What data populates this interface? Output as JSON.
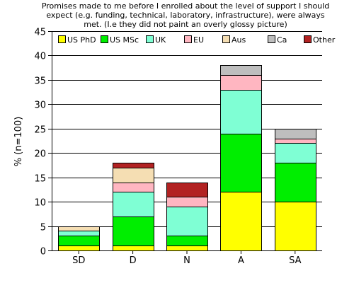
{
  "chart_data": {
    "type": "bar",
    "stacked": true,
    "title_lines": [
      "Promises made to me before I enrolled about the level of support I should",
      "expect (e.g. funding, technical, laboratory, infrastructure), were always",
      "met. (I.e they did not paint an overly glossy picture)"
    ],
    "xlabel": "",
    "ylabel": "% (n=100)",
    "ylim": [
      0,
      45
    ],
    "yticks": [
      "0",
      "5",
      "10",
      "15",
      "20",
      "25",
      "30",
      "35",
      "40",
      "45"
    ],
    "grid": true,
    "legend_placement": "top",
    "categories": [
      "SD",
      "D",
      "N",
      "A",
      "SA"
    ],
    "series": [
      {
        "name": "US PhD",
        "color": "#ffff00",
        "values": [
          1,
          1,
          1,
          12,
          10
        ]
      },
      {
        "name": "US MSc",
        "color": "#00ee00",
        "values": [
          2,
          6,
          2,
          12,
          8
        ]
      },
      {
        "name": "UK",
        "color": "#7fffd4",
        "values": [
          1,
          5,
          6,
          9,
          4
        ]
      },
      {
        "name": "EU",
        "color": "#ffb6c1",
        "values": [
          0,
          2,
          2,
          3,
          1
        ]
      },
      {
        "name": "Aus",
        "color": "#f5deb3",
        "values": [
          1,
          3,
          0,
          0,
          0
        ]
      },
      {
        "name": "Ca",
        "color": "#bebebe",
        "values": [
          0,
          0,
          0,
          2,
          2
        ]
      },
      {
        "name": "Other",
        "color": "#b22222",
        "values": [
          0,
          1,
          3,
          0,
          0
        ]
      }
    ]
  }
}
